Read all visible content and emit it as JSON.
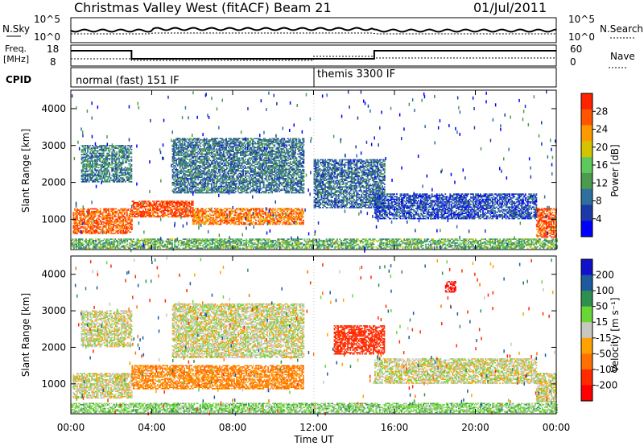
{
  "header": {
    "station": "Christmas Valley West (fitACF)",
    "beam": "Beam 21",
    "date": "01/Jul/2011"
  },
  "strips": {
    "nsky": {
      "label": "N.Sky",
      "ticks": [
        "10^5",
        "10^0"
      ]
    },
    "nsearch": {
      "label": "N.Search",
      "ticks": [
        "10^5",
        "10^0"
      ]
    },
    "freq": {
      "label_top": "Freq.",
      "label_bottom": "[MHz]",
      "ticks": [
        "18",
        "8"
      ]
    },
    "nave": {
      "label": "Nave",
      "ticks": [
        "60",
        "0"
      ]
    },
    "cpid": {
      "label": "CPID",
      "modes": [
        "normal (fast) 151 IF",
        "themis 3300 IF"
      ]
    }
  },
  "chart_data": [
    {
      "type": "heatmap",
      "quantity": "power",
      "ylabel": "Slant Range [km]",
      "xlabel": "",
      "x_ticks": [
        "00:00",
        "04:00",
        "08:00",
        "12:00",
        "16:00",
        "20:00",
        "00:00"
      ],
      "y_ticks": [
        "1000",
        "2000",
        "3000",
        "4000"
      ],
      "ylim": [
        180,
        4500
      ],
      "xlim_hours": [
        0,
        24
      ],
      "colorbar": {
        "label": "Power [dB]",
        "ticks": [
          "4",
          "8",
          "12",
          "16",
          "20",
          "24",
          "28"
        ],
        "colors": [
          "#0000ff",
          "#1b3aa8",
          "#2e6f9e",
          "#4c9a4c",
          "#5dc95d",
          "#d4c400",
          "#ff9900",
          "#ff5500",
          "#ff2200"
        ]
      },
      "regions": [
        {
          "t0": 0.1,
          "t1": 3.0,
          "r0": 600,
          "r1": 1300,
          "level": 26
        },
        {
          "t0": 3.0,
          "t1": 6.0,
          "r0": 1050,
          "r1": 1500,
          "level": 28
        },
        {
          "t0": 6.0,
          "t1": 11.5,
          "r0": 850,
          "r1": 1300,
          "level": 25
        },
        {
          "t0": 0.5,
          "t1": 3.0,
          "r0": 2000,
          "r1": 3000,
          "level": 10
        },
        {
          "t0": 5.0,
          "t1": 11.5,
          "r0": 1700,
          "r1": 3200,
          "level": 9
        },
        {
          "t0": 12.0,
          "t1": 15.5,
          "r0": 1300,
          "r1": 2600,
          "level": 8
        },
        {
          "t0": 15.0,
          "t1": 23.0,
          "r0": 1000,
          "r1": 1700,
          "level": 6
        },
        {
          "t0": 23.0,
          "t1": 24.0,
          "r0": 500,
          "r1": 1300,
          "level": 27
        },
        {
          "t0": 0.0,
          "t1": 24.0,
          "r0": 200,
          "r1": 450,
          "level": 14
        }
      ]
    },
    {
      "type": "heatmap",
      "quantity": "velocity",
      "ylabel": "Slant Range [km]",
      "xlabel": "Time UT",
      "x_ticks": [
        "00:00",
        "04:00",
        "08:00",
        "12:00",
        "16:00",
        "20:00",
        "00:00"
      ],
      "y_ticks": [
        "1000",
        "2000",
        "3000",
        "4000"
      ],
      "ylim": [
        180,
        4500
      ],
      "xlim_hours": [
        0,
        24
      ],
      "colorbar": {
        "label": "Velocity [m s⁻¹]",
        "ticks": [
          "200",
          "100",
          "50",
          "15",
          "-15",
          "-50",
          "-100",
          "-200"
        ],
        "colors": [
          "#1111cc",
          "#1d5a9e",
          "#2f8f4f",
          "#6ad636",
          "#c8c8c0",
          "#ffa200",
          "#ff7000",
          "#ff2a00",
          "#ff0000"
        ]
      },
      "regions": [
        {
          "t0": 0.1,
          "t1": 3.0,
          "r0": 600,
          "r1": 1300,
          "level": 0
        },
        {
          "t0": 3.0,
          "t1": 11.5,
          "r0": 850,
          "r1": 1500,
          "level": -60
        },
        {
          "t0": 0.5,
          "t1": 3.0,
          "r0": 2000,
          "r1": 3000,
          "level": 0
        },
        {
          "t0": 5.0,
          "t1": 11.5,
          "r0": 1700,
          "r1": 3200,
          "level": 0
        },
        {
          "t0": 13.0,
          "t1": 15.5,
          "r0": 1800,
          "r1": 2600,
          "level": -150
        },
        {
          "t0": 15.0,
          "t1": 23.0,
          "r0": 1000,
          "r1": 1700,
          "level": 0
        },
        {
          "t0": 23.0,
          "t1": 24.0,
          "r0": 500,
          "r1": 1300,
          "level": 0
        },
        {
          "t0": 0.0,
          "t1": 24.0,
          "r0": 200,
          "r1": 450,
          "level": 30
        },
        {
          "t0": 18.5,
          "t1": 19.0,
          "r0": 3500,
          "r1": 3800,
          "level": -220
        }
      ]
    }
  ]
}
